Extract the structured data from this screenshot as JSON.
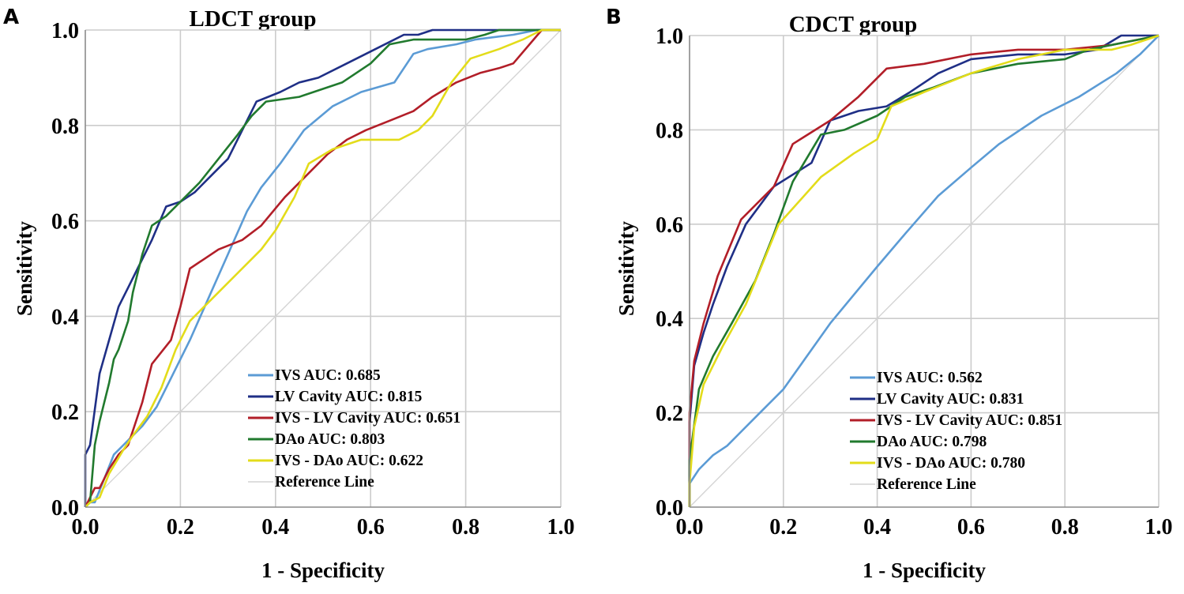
{
  "figure": {
    "panels": [
      "A",
      "B"
    ]
  },
  "chart_data": [
    {
      "panel": "A",
      "type": "line",
      "title": "LDCT group",
      "xlabel": "1 - Specificity",
      "ylabel": "Sensitivity",
      "xlim": [
        0.0,
        1.0
      ],
      "ylim": [
        0.0,
        1.0
      ],
      "xticks": [
        "0.0",
        "0.2",
        "0.4",
        "0.6",
        "0.8",
        "1.0"
      ],
      "yticks": [
        "0.0",
        "0.2",
        "0.4",
        "0.6",
        "0.8",
        "1.0"
      ],
      "grid": true,
      "legend_position": "bottom-right",
      "series": [
        {
          "name": "IVS AUC: 0.685",
          "color": "#5b9bd5",
          "x": [
            0.0,
            0.01,
            0.02,
            0.04,
            0.06,
            0.08,
            0.1,
            0.12,
            0.15,
            0.18,
            0.22,
            0.26,
            0.3,
            0.34,
            0.37,
            0.41,
            0.46,
            0.52,
            0.58,
            0.65,
            0.69,
            0.72,
            0.78,
            0.82,
            0.9,
            0.95,
            1.0
          ],
          "y": [
            0.0,
            0.01,
            0.01,
            0.06,
            0.11,
            0.13,
            0.15,
            0.17,
            0.21,
            0.27,
            0.35,
            0.44,
            0.53,
            0.62,
            0.67,
            0.72,
            0.79,
            0.84,
            0.87,
            0.89,
            0.95,
            0.96,
            0.97,
            0.98,
            0.99,
            1.0,
            1.0
          ]
        },
        {
          "name": "LV Cavity AUC: 0.815",
          "color": "#1f2f86",
          "x": [
            0.0,
            0.0,
            0.01,
            0.03,
            0.05,
            0.07,
            0.09,
            0.11,
            0.14,
            0.17,
            0.2,
            0.23,
            0.27,
            0.3,
            0.33,
            0.36,
            0.41,
            0.45,
            0.49,
            0.55,
            0.61,
            0.67,
            0.7,
            0.73,
            1.0
          ],
          "y": [
            0.0,
            0.11,
            0.13,
            0.28,
            0.35,
            0.42,
            0.46,
            0.5,
            0.56,
            0.63,
            0.64,
            0.66,
            0.7,
            0.73,
            0.79,
            0.85,
            0.87,
            0.89,
            0.9,
            0.93,
            0.96,
            0.99,
            0.99,
            1.0,
            1.0
          ]
        },
        {
          "name": "IVS - LV Cavity AUC: 0.651",
          "color": "#b21e28",
          "x": [
            0.0,
            0.01,
            0.02,
            0.03,
            0.05,
            0.07,
            0.09,
            0.1,
            0.12,
            0.14,
            0.18,
            0.2,
            0.22,
            0.25,
            0.28,
            0.33,
            0.37,
            0.42,
            0.47,
            0.51,
            0.55,
            0.59,
            0.64,
            0.69,
            0.73,
            0.78,
            0.83,
            0.87,
            0.9,
            0.96,
            1.0
          ],
          "y": [
            0.0,
            0.02,
            0.04,
            0.04,
            0.08,
            0.11,
            0.13,
            0.16,
            0.22,
            0.3,
            0.35,
            0.42,
            0.5,
            0.52,
            0.54,
            0.56,
            0.59,
            0.65,
            0.7,
            0.74,
            0.77,
            0.79,
            0.81,
            0.83,
            0.86,
            0.89,
            0.91,
            0.92,
            0.93,
            1.0,
            1.0
          ]
        },
        {
          "name": "DAo AUC: 0.803",
          "color": "#217a2e",
          "x": [
            0.0,
            0.01,
            0.02,
            0.03,
            0.04,
            0.05,
            0.06,
            0.07,
            0.08,
            0.09,
            0.1,
            0.12,
            0.14,
            0.17,
            0.2,
            0.24,
            0.28,
            0.32,
            0.35,
            0.38,
            0.45,
            0.54,
            0.6,
            0.64,
            0.69,
            0.74,
            0.8,
            0.84,
            0.87,
            1.0
          ],
          "y": [
            0.0,
            0.01,
            0.13,
            0.18,
            0.22,
            0.26,
            0.31,
            0.33,
            0.36,
            0.39,
            0.45,
            0.53,
            0.59,
            0.61,
            0.64,
            0.68,
            0.73,
            0.78,
            0.82,
            0.85,
            0.86,
            0.89,
            0.93,
            0.97,
            0.98,
            0.98,
            0.98,
            0.99,
            1.0,
            1.0
          ]
        },
        {
          "name": "IVS - DAo AUC: 0.622",
          "color": "#e3dc1a",
          "x": [
            0.0,
            0.01,
            0.03,
            0.05,
            0.08,
            0.1,
            0.13,
            0.16,
            0.19,
            0.22,
            0.27,
            0.32,
            0.37,
            0.4,
            0.44,
            0.47,
            0.52,
            0.58,
            0.62,
            0.66,
            0.7,
            0.73,
            0.77,
            0.81,
            0.87,
            0.92,
            0.96,
            1.0
          ],
          "y": [
            0.0,
            0.01,
            0.02,
            0.07,
            0.12,
            0.15,
            0.19,
            0.25,
            0.33,
            0.39,
            0.44,
            0.49,
            0.54,
            0.58,
            0.65,
            0.72,
            0.75,
            0.77,
            0.77,
            0.77,
            0.79,
            0.82,
            0.89,
            0.94,
            0.96,
            0.98,
            1.0,
            1.0
          ]
        },
        {
          "name": "Reference Line",
          "color": "#d4d4d4",
          "x": [
            0.0,
            1.0
          ],
          "y": [
            0.0,
            1.0
          ]
        }
      ]
    },
    {
      "panel": "B",
      "type": "line",
      "title": "CDCT group",
      "xlabel": "1 - Specificity",
      "ylabel": "Sensitivity",
      "xlim": [
        0.0,
        1.0
      ],
      "ylim": [
        0.0,
        1.0
      ],
      "xticks": [
        "0.0",
        "0.2",
        "0.4",
        "0.6",
        "0.8",
        "1.0"
      ],
      "yticks": [
        "0.0",
        "0.2",
        "0.4",
        "0.6",
        "0.8",
        "1.0"
      ],
      "grid": true,
      "legend_position": "bottom-right",
      "series": [
        {
          "name": "IVS AUC: 0.562",
          "color": "#5b9bd5",
          "x": [
            0.0,
            0.0,
            0.02,
            0.05,
            0.08,
            0.11,
            0.15,
            0.2,
            0.25,
            0.3,
            0.35,
            0.4,
            0.46,
            0.53,
            0.6,
            0.66,
            0.75,
            0.83,
            0.91,
            0.96,
            1.0
          ],
          "y": [
            0.0,
            0.05,
            0.08,
            0.11,
            0.13,
            0.16,
            0.2,
            0.25,
            0.32,
            0.39,
            0.45,
            0.51,
            0.58,
            0.66,
            0.72,
            0.77,
            0.83,
            0.87,
            0.92,
            0.96,
            1.0
          ]
        },
        {
          "name": "LV Cavity AUC: 0.831",
          "color": "#1f2f86",
          "x": [
            0.0,
            0.0,
            0.01,
            0.03,
            0.05,
            0.08,
            0.12,
            0.18,
            0.26,
            0.3,
            0.36,
            0.42,
            0.47,
            0.53,
            0.6,
            0.7,
            0.8,
            0.87,
            0.92,
            1.0
          ],
          "y": [
            0.0,
            0.18,
            0.3,
            0.37,
            0.43,
            0.51,
            0.6,
            0.68,
            0.73,
            0.82,
            0.84,
            0.85,
            0.88,
            0.92,
            0.95,
            0.96,
            0.96,
            0.97,
            1.0,
            1.0
          ]
        },
        {
          "name": "IVS - LV Cavity AUC: 0.851",
          "color": "#b21e28",
          "x": [
            0.0,
            0.0,
            0.01,
            0.03,
            0.06,
            0.11,
            0.18,
            0.22,
            0.3,
            0.36,
            0.42,
            0.5,
            0.6,
            0.7,
            0.8,
            0.9,
            1.0
          ],
          "y": [
            0.0,
            0.2,
            0.31,
            0.39,
            0.49,
            0.61,
            0.68,
            0.77,
            0.82,
            0.87,
            0.93,
            0.94,
            0.96,
            0.97,
            0.97,
            0.98,
            1.0
          ]
        },
        {
          "name": "DAo AUC: 0.798",
          "color": "#217a2e",
          "x": [
            0.0,
            0.0,
            0.02,
            0.05,
            0.09,
            0.14,
            0.18,
            0.22,
            0.28,
            0.33,
            0.4,
            0.46,
            0.52,
            0.6,
            0.7,
            0.8,
            0.85,
            0.9,
            1.0
          ],
          "y": [
            0.0,
            0.1,
            0.25,
            0.32,
            0.39,
            0.48,
            0.58,
            0.69,
            0.79,
            0.8,
            0.83,
            0.87,
            0.89,
            0.92,
            0.94,
            0.95,
            0.97,
            0.98,
            1.0
          ]
        },
        {
          "name": "IVS - DAo AUC: 0.780",
          "color": "#e3dc1a",
          "x": [
            0.0,
            0.0,
            0.01,
            0.03,
            0.07,
            0.12,
            0.19,
            0.28,
            0.35,
            0.4,
            0.43,
            0.5,
            0.6,
            0.7,
            0.8,
            0.9,
            0.94,
            1.0
          ],
          "y": [
            0.0,
            0.05,
            0.17,
            0.26,
            0.34,
            0.43,
            0.6,
            0.7,
            0.75,
            0.78,
            0.85,
            0.88,
            0.92,
            0.95,
            0.97,
            0.97,
            0.98,
            1.0
          ]
        },
        {
          "name": "Reference Line",
          "color": "#d4d4d4",
          "x": [
            0.0,
            1.0
          ],
          "y": [
            0.0,
            1.0
          ]
        }
      ]
    }
  ]
}
